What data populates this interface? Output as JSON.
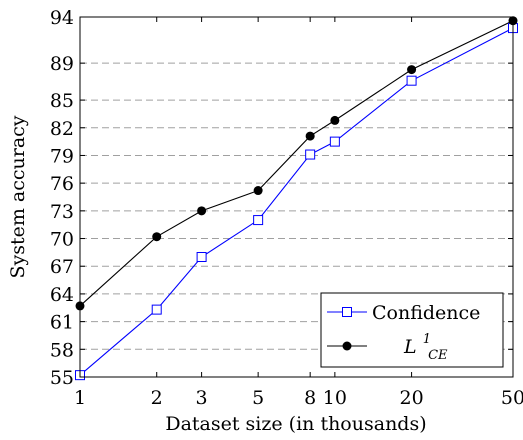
{
  "chart_data": {
    "type": "line",
    "title": "",
    "xlabel": "Dataset size (in thousands)",
    "ylabel": "System accuracy",
    "xscale": "log",
    "xlim": [
      1,
      50
    ],
    "ylim": [
      55,
      94
    ],
    "xticks": [
      1,
      2,
      3,
      5,
      8,
      10,
      20,
      50
    ],
    "xtick_labels": [
      "1",
      "2",
      "3",
      "5",
      "8",
      "10",
      "20",
      "50"
    ],
    "yticks": [
      55,
      58,
      61,
      64,
      67,
      70,
      73,
      76,
      79,
      82,
      85,
      89,
      94
    ],
    "ytick_labels": [
      "55",
      "58",
      "61",
      "64",
      "67",
      "70",
      "73",
      "76",
      "79",
      "82",
      "85",
      "89",
      "94"
    ],
    "grid": "horizontal dashed",
    "legend_position": "bottom-right",
    "x": [
      1,
      2,
      3,
      5,
      8,
      10,
      20,
      50
    ],
    "series": [
      {
        "name": "Confidence",
        "color": "#0000ff",
        "marker": "open-square",
        "values": [
          55.2,
          62.3,
          68.0,
          72.0,
          79.1,
          80.5,
          87.1,
          92.8
        ]
      },
      {
        "name": "L^1_CE",
        "name_main": "L",
        "name_sup": "1",
        "name_sub": "CE",
        "color": "#000000",
        "marker": "filled-circle",
        "values": [
          62.7,
          70.2,
          73.0,
          75.2,
          81.1,
          82.8,
          88.3,
          93.6
        ]
      }
    ]
  }
}
